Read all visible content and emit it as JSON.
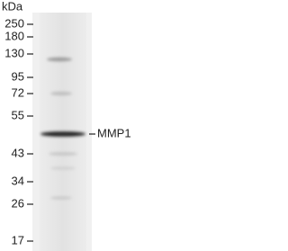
{
  "axis_title": "kDa",
  "markers": [
    "250",
    "180",
    "130",
    "95",
    "72",
    "55",
    "43",
    "34",
    "26",
    "17"
  ],
  "band_label": "MMP1"
}
